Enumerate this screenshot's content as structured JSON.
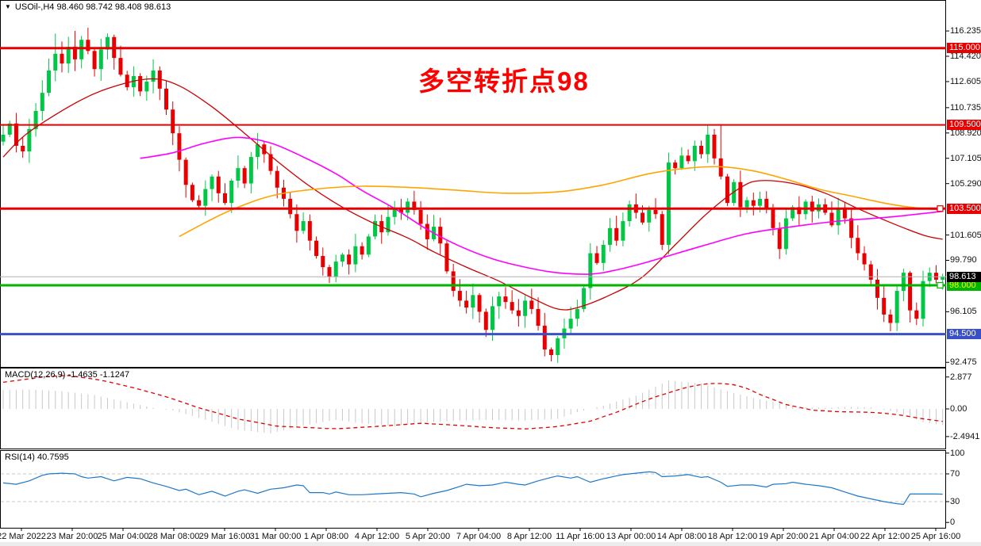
{
  "window": {
    "title_arrow": "▼",
    "title": "USOil-,H4",
    "quotes": "98.460 98.742 98.408 98.613"
  },
  "annotation": {
    "text": "多空转折点98",
    "color": "#FF0000"
  },
  "panels": {
    "macd_label": "MACD(12,26,9) -1.4635 -1.1247",
    "rsi_label": "RSI(14) 40.7595"
  },
  "colors": {
    "up": "#00C846",
    "down": "#E80000",
    "ma_fast": "#CC0000",
    "ma_mid": "#FF00FF",
    "ma_slow": "#FFA500",
    "hline_red": "#E80000",
    "hline_green": "#00B400",
    "hline_blue": "#3A50C8",
    "price_line": "#B0B0B0",
    "macd_hist": "#C8C8C8",
    "macd_signal": "#E00000",
    "rsi_line": "#1E78C8",
    "badge_black": "#000000",
    "level_dash": "#C8C8C8"
  },
  "price_axis": {
    "ticks": [
      {
        "label": "116.235",
        "value": 116.235
      },
      {
        "label": "114.420",
        "value": 114.42
      },
      {
        "label": "112.605",
        "value": 112.605
      },
      {
        "label": "110.735",
        "value": 110.735
      },
      {
        "label": "108.920",
        "value": 108.92
      },
      {
        "label": "107.105",
        "value": 107.105
      },
      {
        "label": "105.290",
        "value": 105.29
      },
      {
        "label": "101.605",
        "value": 101.605
      },
      {
        "label": "99.790",
        "value": 99.79
      },
      {
        "label": "96.105",
        "value": 96.105
      },
      {
        "label": "92.475",
        "value": 92.475
      }
    ]
  },
  "hlines": [
    {
      "value": 115.0,
      "label": "115.000",
      "color_key": "hline_red",
      "text_color": "#FFFFFF",
      "width": 3,
      "handle": false
    },
    {
      "value": 109.5,
      "label": "109.500",
      "color_key": "hline_red",
      "text_color": "#FFFFFF",
      "width": 2,
      "handle": false
    },
    {
      "value": 103.5,
      "label": "103.500",
      "color_key": "hline_red",
      "text_color": "#FFFFFF",
      "width": 3,
      "handle": true
    },
    {
      "value": 98.0,
      "label": "98.000",
      "color_key": "hline_green",
      "text_color": "#FFFF00",
      "width": 3,
      "handle": true
    },
    {
      "value": 94.5,
      "label": "94.500",
      "color_key": "hline_blue",
      "text_color": "#FFFFFF",
      "width": 3,
      "handle": false
    }
  ],
  "current_price": {
    "label": "98.613",
    "value": 98.613
  },
  "x_axis": {
    "labels": [
      "22 Mar 2022",
      "23 Mar 20:00",
      "25 Mar 04:00",
      "28 Mar 08:00",
      "29 Mar 16:00",
      "31 Mar 00:00",
      "1 Apr 08:00",
      "4 Apr 12:00",
      "5 Apr 20:00",
      "7 Apr 04:00",
      "8 Apr 12:00",
      "11 Apr 16:00",
      "13 Apr 00:00",
      "14 Apr 08:00",
      "18 Apr 12:00",
      "19 Apr 20:00",
      "21 Apr 04:00",
      "22 Apr 12:00",
      "25 Apr 16:00"
    ]
  },
  "macd_axis": {
    "ticks": [
      {
        "label": "2.877",
        "value": 2.877
      },
      {
        "label": "0.00",
        "value": 0
      },
      {
        "label": "-2.4941",
        "value": -2.4941
      }
    ]
  },
  "rsi_axis": {
    "ticks": [
      {
        "label": "100",
        "value": 100
      },
      {
        "label": "70",
        "value": 70
      },
      {
        "label": "30",
        "value": 30
      },
      {
        "label": "0",
        "value": 0
      }
    ],
    "levels": [
      70,
      30
    ]
  },
  "chart_data": [
    {
      "type": "candlestick",
      "title": "USOil-,H4",
      "ylim": [
        92.2,
        117.6
      ],
      "first_open": 108.3,
      "closes": [
        108.8,
        109.6,
        108.0,
        107.6,
        109.2,
        110.5,
        111.8,
        113.4,
        114.6,
        113.9,
        115.1,
        114.2,
        115.6,
        114.8,
        113.5,
        114.9,
        115.8,
        114.3,
        113.1,
        112.2,
        113.0,
        111.9,
        112.6,
        113.4,
        112.1,
        110.6,
        108.9,
        107.0,
        105.2,
        104.1,
        103.7,
        104.9,
        105.8,
        104.6,
        103.9,
        105.5,
        106.4,
        105.3,
        107.2,
        108.1,
        107.4,
        106.2,
        105.0,
        104.2,
        103.1,
        101.9,
        102.6,
        101.2,
        100.1,
        99.3,
        98.6,
        99.7,
        100.2,
        99.5,
        100.8,
        100.2,
        101.5,
        102.6,
        101.8,
        102.9,
        103.5,
        103.2,
        104.0,
        103.4,
        102.4,
        101.3,
        102.2,
        101.0,
        99.0,
        97.6,
        96.9,
        96.4,
        97.3,
        96.1,
        94.8,
        96.5,
        97.2,
        96.8,
        96.2,
        95.8,
        96.9,
        96.3,
        95.1,
        93.4,
        93.0,
        94.2,
        94.9,
        95.6,
        96.3,
        97.8,
        100.3,
        99.6,
        100.9,
        102.1,
        101.2,
        102.6,
        103.8,
        103.2,
        102.5,
        103.4,
        103.1,
        100.9,
        106.8,
        106.4,
        107.3,
        106.9,
        108.0,
        107.4,
        108.8,
        107.1,
        105.8,
        103.9,
        105.4,
        103.6,
        104.1,
        103.7,
        104.2,
        103.5,
        102.1,
        100.6,
        102.8,
        103.6,
        103.1,
        104.0,
        103.3,
        103.8,
        103.2,
        102.3,
        103.5,
        102.8,
        101.4,
        100.3,
        99.5,
        98.4,
        97.1,
        95.9,
        95.3,
        97.6,
        98.9,
        96.2,
        95.6,
        98.3,
        98.9,
        98.4,
        98.613
      ],
      "wick_high_overrides": {
        "8": 116.05,
        "11": 116.24,
        "109": 109.2,
        "110": 109.55
      },
      "wick_low_overrides": {
        "74": 94.3,
        "83": 92.9,
        "84": 92.55,
        "140": 95.15
      },
      "horizontal_levels": [
        115.0,
        109.5,
        103.5,
        98.0,
        94.5
      ],
      "moving_averages": [
        {
          "name": "ma-fast-red",
          "points": [
            [
              0,
              107.2
            ],
            [
              4,
              109.0
            ],
            [
              12,
              111.3
            ],
            [
              18,
              112.4
            ],
            [
              23,
              112.8
            ],
            [
              27,
              112.3
            ],
            [
              32,
              110.8
            ],
            [
              37,
              108.9
            ],
            [
              42,
              106.9
            ],
            [
              47,
              105.1
            ],
            [
              52,
              103.6
            ],
            [
              57,
              102.4
            ],
            [
              62,
              101.4
            ],
            [
              66,
              100.4
            ],
            [
              71,
              99.3
            ],
            [
              76,
              98.3
            ],
            [
              81,
              97.1
            ],
            [
              85,
              96.3
            ],
            [
              88,
              96.4
            ],
            [
              93,
              97.3
            ],
            [
              98,
              98.6
            ],
            [
              103,
              100.9
            ],
            [
              108,
              103.2
            ],
            [
              113,
              105.0
            ],
            [
              116,
              105.5
            ],
            [
              121,
              105.3
            ],
            [
              126,
              104.6
            ],
            [
              131,
              103.5
            ],
            [
              136,
              102.5
            ],
            [
              141,
              101.6
            ],
            [
              144,
              101.3
            ]
          ]
        },
        {
          "name": "ma-mid-magenta",
          "points": [
            [
              21,
              107.1
            ],
            [
              26,
              107.5
            ],
            [
              31,
              108.2
            ],
            [
              36,
              108.6
            ],
            [
              41,
              108.2
            ],
            [
              46,
              107.2
            ],
            [
              51,
              106.0
            ],
            [
              55,
              104.8
            ],
            [
              60,
              103.5
            ],
            [
              65,
              102.0
            ],
            [
              70,
              100.8
            ],
            [
              75,
              99.9
            ],
            [
              80,
              99.3
            ],
            [
              85,
              98.9
            ],
            [
              90,
              98.8
            ],
            [
              94,
              99.1
            ],
            [
              99,
              99.7
            ],
            [
              107,
              100.8
            ],
            [
              114,
              101.7
            ],
            [
              121,
              102.2
            ],
            [
              128,
              102.6
            ],
            [
              136,
              102.9
            ],
            [
              144,
              103.3
            ]
          ]
        },
        {
          "name": "ma-slow-orange",
          "points": [
            [
              27,
              101.5
            ],
            [
              34,
              103.2
            ],
            [
              41,
              104.4
            ],
            [
              48,
              104.9
            ],
            [
              55,
              105.1
            ],
            [
              63,
              105.0
            ],
            [
              70,
              104.8
            ],
            [
              77,
              104.6
            ],
            [
              85,
              104.7
            ],
            [
              92,
              105.2
            ],
            [
              99,
              106.0
            ],
            [
              105,
              106.4
            ],
            [
              110,
              106.5
            ],
            [
              115,
              106.2
            ],
            [
              120,
              105.6
            ],
            [
              125,
              104.9
            ],
            [
              130,
              104.4
            ],
            [
              135,
              103.9
            ],
            [
              139,
              103.6
            ],
            [
              144,
              103.4
            ]
          ]
        }
      ]
    },
    {
      "type": "bar",
      "name": "MACD(12,26,9)",
      "ylim": [
        -2.85,
        3.4
      ],
      "last_values": {
        "macd": -1.4635,
        "signal": -1.1247
      },
      "histogram_points": [
        [
          0,
          1.7
        ],
        [
          4,
          1.75
        ],
        [
          9,
          1.6
        ],
        [
          14,
          1.25
        ],
        [
          19,
          0.6
        ],
        [
          23,
          0.1
        ],
        [
          26,
          -0.15
        ],
        [
          30,
          -0.8
        ],
        [
          36,
          -1.9
        ],
        [
          41,
          -2.2
        ],
        [
          46,
          -1.5
        ],
        [
          51,
          -1.0
        ],
        [
          55,
          -1.3
        ],
        [
          60,
          -1.55
        ],
        [
          65,
          -1.2
        ],
        [
          70,
          -1.05
        ],
        [
          75,
          -1.0
        ],
        [
          80,
          -1.05
        ],
        [
          85,
          -0.9
        ],
        [
          88,
          -0.3
        ],
        [
          92,
          0.3
        ],
        [
          97,
          1.2
        ],
        [
          102,
          2.55
        ],
        [
          107,
          2.3
        ],
        [
          111,
          1.6
        ],
        [
          115,
          1.0
        ],
        [
          119,
          0.5
        ],
        [
          122,
          0.15
        ],
        [
          126,
          0.1
        ],
        [
          130,
          0.2
        ],
        [
          133,
          0.15
        ],
        [
          137,
          -0.3
        ],
        [
          141,
          -1.2
        ],
        [
          144,
          -1.46
        ]
      ],
      "signal_points": [
        [
          0,
          2.4
        ],
        [
          7,
          2.95
        ],
        [
          10,
          3.0
        ],
        [
          15,
          2.6
        ],
        [
          20,
          1.9
        ],
        [
          25,
          1.1
        ],
        [
          30,
          0.1
        ],
        [
          36,
          -0.9
        ],
        [
          42,
          -1.55
        ],
        [
          51,
          -1.8
        ],
        [
          58,
          -1.55
        ],
        [
          64,
          -1.3
        ],
        [
          69,
          -1.45
        ],
        [
          75,
          -1.7
        ],
        [
          80,
          -1.8
        ],
        [
          85,
          -1.6
        ],
        [
          90,
          -1.1
        ],
        [
          94,
          -0.3
        ],
        [
          99,
          0.9
        ],
        [
          105,
          2.0
        ],
        [
          109,
          2.35
        ],
        [
          113,
          2.1
        ],
        [
          116,
          1.3
        ],
        [
          120,
          0.4
        ],
        [
          124,
          -0.1
        ],
        [
          128,
          -0.25
        ],
        [
          133,
          -0.3
        ],
        [
          137,
          -0.5
        ],
        [
          141,
          -0.9
        ],
        [
          144,
          -1.12
        ]
      ]
    },
    {
      "type": "line",
      "name": "RSI(14)",
      "ylim": [
        0,
        100
      ],
      "levels": [
        70,
        30
      ],
      "last_value": 40.7595,
      "points": [
        [
          0,
          57
        ],
        [
          2,
          55
        ],
        [
          4,
          60
        ],
        [
          6,
          68
        ],
        [
          7,
          70
        ],
        [
          9,
          71
        ],
        [
          11,
          70
        ],
        [
          12,
          66
        ],
        [
          13,
          64
        ],
        [
          15,
          66
        ],
        [
          17,
          60
        ],
        [
          19,
          65
        ],
        [
          21,
          63
        ],
        [
          23,
          57
        ],
        [
          25,
          52
        ],
        [
          27,
          46
        ],
        [
          28,
          48
        ],
        [
          29,
          44
        ],
        [
          30,
          40
        ],
        [
          32,
          45
        ],
        [
          34,
          38
        ],
        [
          36,
          45
        ],
        [
          37,
          47
        ],
        [
          39,
          42
        ],
        [
          41,
          48
        ],
        [
          43,
          50
        ],
        [
          45,
          54
        ],
        [
          46,
          53
        ],
        [
          47,
          43
        ],
        [
          49,
          43
        ],
        [
          50,
          41
        ],
        [
          51,
          44
        ],
        [
          53,
          40
        ],
        [
          55,
          40
        ],
        [
          57,
          41
        ],
        [
          59,
          42
        ],
        [
          61,
          43
        ],
        [
          63,
          41
        ],
        [
          64,
          37
        ],
        [
          66,
          42
        ],
        [
          68,
          46
        ],
        [
          70,
          52
        ],
        [
          71,
          55
        ],
        [
          73,
          53
        ],
        [
          75,
          54
        ],
        [
          77,
          58
        ],
        [
          79,
          55
        ],
        [
          80,
          54
        ],
        [
          82,
          60
        ],
        [
          84,
          65
        ],
        [
          85,
          67
        ],
        [
          87,
          64
        ],
        [
          88,
          66
        ],
        [
          89,
          62
        ],
        [
          90,
          58
        ],
        [
          92,
          63
        ],
        [
          94,
          67
        ],
        [
          95,
          69
        ],
        [
          97,
          71
        ],
        [
          99,
          73
        ],
        [
          100,
          72
        ],
        [
          101,
          66
        ],
        [
          103,
          67
        ],
        [
          105,
          69
        ],
        [
          107,
          65
        ],
        [
          108,
          66
        ],
        [
          109,
          62
        ],
        [
          110,
          58
        ],
        [
          111,
          52
        ],
        [
          113,
          54
        ],
        [
          115,
          54
        ],
        [
          117,
          51
        ],
        [
          118,
          55
        ],
        [
          120,
          56
        ],
        [
          121,
          58
        ],
        [
          123,
          55
        ],
        [
          125,
          53
        ],
        [
          127,
          50
        ],
        [
          129,
          44
        ],
        [
          131,
          38
        ],
        [
          133,
          34
        ],
        [
          135,
          30
        ],
        [
          137,
          27
        ],
        [
          138,
          26
        ],
        [
          139,
          41
        ],
        [
          141,
          41
        ],
        [
          143,
          41
        ],
        [
          144,
          40.76
        ]
      ]
    }
  ]
}
